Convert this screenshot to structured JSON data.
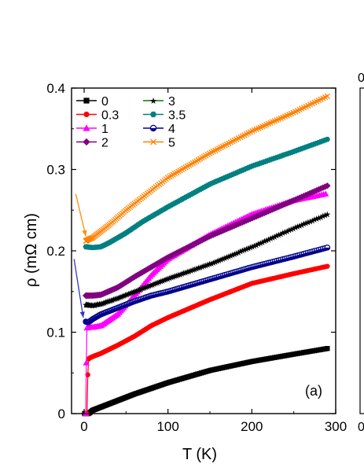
{
  "chart_data": {
    "type": "line",
    "panel_label": "(a)",
    "xlabel": "T (K)",
    "ylabel": "ρ (mΩ cm)",
    "xlim": [
      -15,
      300
    ],
    "ylim": [
      0,
      0.4
    ],
    "xticks": [
      0,
      100,
      200,
      300
    ],
    "yticks": [
      0,
      0.1,
      0.2,
      0.3,
      0.4
    ],
    "xtick_labels": [
      "0",
      "100",
      "200",
      "300"
    ],
    "ytick_labels": [
      "0",
      "0.1",
      "0.2",
      "0.3",
      "0.4"
    ],
    "grid": false,
    "legend_placement": "top-left",
    "series": [
      {
        "name": "0",
        "color": "#000000",
        "marker": "square",
        "curve": [
          [
            0.5,
            0
          ],
          [
            1,
            0
          ],
          [
            3,
            0
          ],
          [
            5,
            0
          ],
          [
            8,
            0.002
          ],
          [
            10,
            0.004
          ],
          [
            20,
            0.008
          ],
          [
            40,
            0.016
          ],
          [
            60,
            0.024
          ],
          [
            80,
            0.031
          ],
          [
            100,
            0.038
          ],
          [
            120,
            0.044
          ],
          [
            150,
            0.053
          ],
          [
            200,
            0.064
          ],
          [
            250,
            0.073
          ],
          [
            290,
            0.08
          ]
        ]
      },
      {
        "name": "0.3",
        "color": "#ff0000",
        "marker": "circle",
        "curve": [
          [
            2,
            0
          ],
          [
            3,
            0
          ],
          [
            4,
            0
          ],
          [
            4.5,
            0.066
          ],
          [
            6,
            0.068
          ],
          [
            10,
            0.07
          ],
          [
            20,
            0.074
          ],
          [
            40,
            0.084
          ],
          [
            60,
            0.095
          ],
          [
            80,
            0.108
          ],
          [
            100,
            0.118
          ],
          [
            150,
            0.14
          ],
          [
            200,
            0.16
          ],
          [
            250,
            0.172
          ],
          [
            290,
            0.181
          ]
        ]
      },
      {
        "name": "1",
        "color": "#ff00ff",
        "marker": "triangle",
        "curve": [
          [
            2,
            0.0
          ],
          [
            3,
            0.105
          ],
          [
            5,
            0.106
          ],
          [
            10,
            0.106
          ],
          [
            20,
            0.108
          ],
          [
            40,
            0.122
          ],
          [
            60,
            0.145
          ],
          [
            80,
            0.17
          ],
          [
            100,
            0.19
          ],
          [
            150,
            0.22
          ],
          [
            200,
            0.245
          ],
          [
            250,
            0.262
          ],
          [
            288,
            0.27
          ]
        ]
      },
      {
        "name": "2",
        "color": "#800080",
        "marker": "diamond",
        "curve": [
          [
            2,
            0.145
          ],
          [
            10,
            0.145
          ],
          [
            20,
            0.146
          ],
          [
            40,
            0.155
          ],
          [
            60,
            0.168
          ],
          [
            80,
            0.18
          ],
          [
            100,
            0.192
          ],
          [
            150,
            0.218
          ],
          [
            200,
            0.24
          ],
          [
            250,
            0.262
          ],
          [
            290,
            0.28
          ]
        ]
      },
      {
        "name": "3",
        "color": "#008000",
        "marker": "star",
        "curve": [
          [
            2,
            0.134
          ],
          [
            10,
            0.133
          ],
          [
            20,
            0.135
          ],
          [
            40,
            0.142
          ],
          [
            60,
            0.15
          ],
          [
            80,
            0.158
          ],
          [
            100,
            0.166
          ],
          [
            150,
            0.184
          ],
          [
            200,
            0.205
          ],
          [
            250,
            0.228
          ],
          [
            290,
            0.245
          ]
        ]
      },
      {
        "name": "3.5",
        "color": "#008080",
        "marker": "hexagon",
        "curve": [
          [
            2,
            0.205
          ],
          [
            10,
            0.204
          ],
          [
            20,
            0.205
          ],
          [
            30,
            0.21
          ],
          [
            50,
            0.222
          ],
          [
            70,
            0.236
          ],
          [
            100,
            0.254
          ],
          [
            150,
            0.282
          ],
          [
            200,
            0.304
          ],
          [
            250,
            0.322
          ],
          [
            290,
            0.337
          ]
        ]
      },
      {
        "name": "4",
        "color": "#00008b",
        "marker": "half",
        "curve": [
          [
            2,
            0.113
          ],
          [
            5,
            0.112
          ],
          [
            10,
            0.116
          ],
          [
            20,
            0.122
          ],
          [
            40,
            0.13
          ],
          [
            60,
            0.138
          ],
          [
            80,
            0.145
          ],
          [
            100,
            0.15
          ],
          [
            150,
            0.165
          ],
          [
            200,
            0.18
          ],
          [
            250,
            0.193
          ],
          [
            290,
            0.204
          ]
        ]
      },
      {
        "name": "5",
        "color": "#ff8000",
        "marker": "x",
        "curve": [
          [
            2,
            0.212
          ],
          [
            5,
            0.214
          ],
          [
            10,
            0.216
          ],
          [
            20,
            0.224
          ],
          [
            30,
            0.232
          ],
          [
            50,
            0.25
          ],
          [
            70,
            0.266
          ],
          [
            100,
            0.29
          ],
          [
            150,
            0.32
          ],
          [
            200,
            0.347
          ],
          [
            250,
            0.37
          ],
          [
            290,
            0.39
          ]
        ]
      }
    ],
    "arrows": [
      {
        "color": "#ff8c00",
        "from": [
          -10,
          0.27
        ],
        "to": [
          2,
          0.218
        ]
      },
      {
        "color": "#3333cc",
        "from": [
          -12,
          0.19
        ],
        "to": [
          -1,
          0.118
        ]
      }
    ],
    "next_panel_fragments": {
      "top_label": "0",
      "axis_label": "0"
    }
  }
}
